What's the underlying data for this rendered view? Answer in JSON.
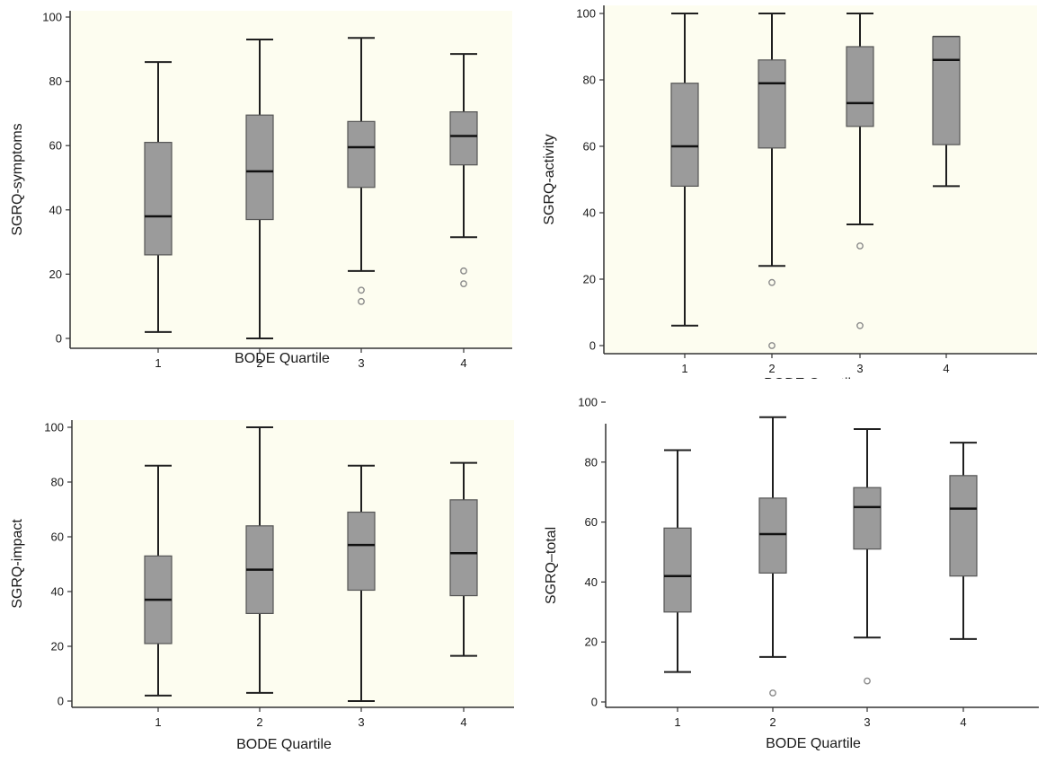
{
  "chart_data": [
    {
      "type": "box",
      "xlabel": "BODE Quartile",
      "ylabel": "SGRQ-symptoms",
      "categories": [
        "1",
        "2",
        "3",
        "4"
      ],
      "ylim": [
        0,
        100
      ],
      "yticks": [
        "0",
        "20",
        "40",
        "60",
        "80",
        "100"
      ],
      "boxes": [
        {
          "category": "1",
          "min": 2,
          "q1": 26,
          "median": 38,
          "q3": 61,
          "max": 86,
          "outliers": []
        },
        {
          "category": "2",
          "min": 0,
          "q1": 37,
          "median": 52,
          "q3": 69.5,
          "max": 93,
          "outliers": []
        },
        {
          "category": "3",
          "min": 21,
          "q1": 47,
          "median": 59.5,
          "q3": 67.5,
          "max": 93.5,
          "outliers": [
            15,
            11.5
          ]
        },
        {
          "category": "4",
          "min": 31.5,
          "q1": 54,
          "median": 63,
          "q3": 70.5,
          "max": 88.5,
          "outliers": [
            21,
            17
          ]
        }
      ],
      "grid": false,
      "background": "#fdfdf0"
    },
    {
      "type": "box",
      "xlabel": "BODE Quartile",
      "ylabel": "SGRQ-activity",
      "categories": [
        "1",
        "2",
        "3",
        "4"
      ],
      "ylim": [
        0,
        100
      ],
      "yticks": [
        "0",
        "20",
        "40",
        "60",
        "80",
        "100"
      ],
      "boxes": [
        {
          "category": "1",
          "min": 6,
          "q1": 48,
          "median": 60,
          "q3": 79,
          "max": 100,
          "outliers": []
        },
        {
          "category": "2",
          "min": 24,
          "q1": 59.5,
          "median": 79,
          "q3": 86,
          "max": 100,
          "outliers": [
            19,
            0
          ]
        },
        {
          "category": "3",
          "min": 36.5,
          "q1": 66,
          "median": 73,
          "q3": 90,
          "max": 100,
          "outliers": [
            30,
            6
          ]
        },
        {
          "category": "4",
          "min": 48,
          "q1": 60.5,
          "median": 86,
          "q3": 93,
          "max": 93,
          "outliers": []
        }
      ],
      "grid": false,
      "background": "#fdfdf0"
    },
    {
      "type": "box",
      "xlabel": "BODE Quartile",
      "ylabel": "SGRQ-impact",
      "categories": [
        "1",
        "2",
        "3",
        "4"
      ],
      "ylim": [
        0,
        100
      ],
      "yticks": [
        "0",
        "20",
        "40",
        "60",
        "80",
        "100"
      ],
      "boxes": [
        {
          "category": "1",
          "min": 2,
          "q1": 21,
          "median": 37,
          "q3": 53,
          "max": 86,
          "outliers": []
        },
        {
          "category": "2",
          "min": 3,
          "q1": 32,
          "median": 48,
          "q3": 64,
          "max": 100,
          "outliers": []
        },
        {
          "category": "3",
          "min": 0,
          "q1": 40.5,
          "median": 57,
          "q3": 69,
          "max": 86,
          "outliers": []
        },
        {
          "category": "4",
          "min": 16.5,
          "q1": 38.5,
          "median": 54,
          "q3": 73.5,
          "max": 87,
          "outliers": []
        }
      ],
      "grid": false,
      "background": "#fdfdf0"
    },
    {
      "type": "box",
      "xlabel": "BODE Quartile",
      "ylabel": "SGRQ–total",
      "categories": [
        "1",
        "2",
        "3",
        "4"
      ],
      "ylim": [
        0,
        100
      ],
      "yticks": [
        "0",
        "20",
        "40",
        "60",
        "80",
        "100"
      ],
      "boxes": [
        {
          "category": "1",
          "min": 10,
          "q1": 30,
          "median": 42,
          "q3": 58,
          "max": 84,
          "outliers": []
        },
        {
          "category": "2",
          "min": 15,
          "q1": 43,
          "median": 56,
          "q3": 68,
          "max": 95,
          "outliers": [
            3
          ]
        },
        {
          "category": "3",
          "min": 21.5,
          "q1": 51,
          "median": 65,
          "q3": 71.5,
          "max": 91,
          "outliers": [
            7
          ]
        },
        {
          "category": "4",
          "min": 21,
          "q1": 42,
          "median": 64.5,
          "q3": 75.5,
          "max": 86.5,
          "outliers": []
        }
      ],
      "grid": false,
      "background": "#ffffff"
    }
  ],
  "colors": {
    "box_fill": "#9b9b9b",
    "box_stroke": "#555555",
    "whisker": "#1f1f1f",
    "median": "#111111",
    "outlier": "#8a8a8a",
    "axis": "#333333"
  }
}
